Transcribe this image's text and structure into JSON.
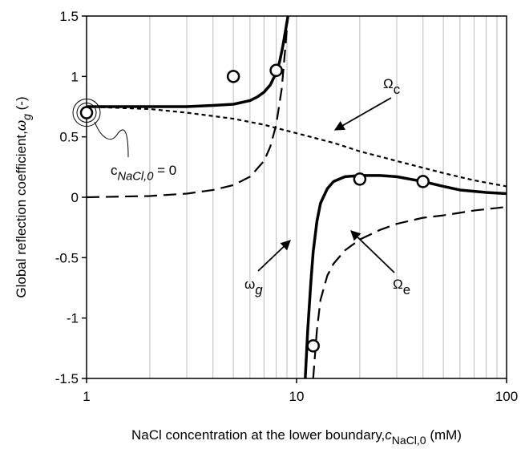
{
  "chart_data": {
    "type": "line",
    "xlabel": {
      "main": "NaCl concentration at the lower boundary,",
      "italic": "c",
      "sub": "NaCl,0",
      "tail": " (mM)"
    },
    "ylabel": {
      "main": "Global reflection coefficient,",
      "italic": "ω",
      "sub": "g",
      "tail": " (-)"
    },
    "xscale": "log",
    "xlim": [
      1,
      100
    ],
    "ylim": [
      -1.5,
      1.5
    ],
    "xticks": [
      1,
      10,
      100
    ],
    "xminor": [
      2,
      3,
      4,
      5,
      6,
      7,
      8,
      9,
      20,
      30,
      40,
      50,
      60,
      70,
      80,
      90
    ],
    "yticks": [
      -1.5,
      -1,
      -0.5,
      0,
      0.5,
      1,
      1.5
    ],
    "grid": true,
    "series": [
      {
        "style": "solid",
        "color": "#000000",
        "x": [
          1,
          2,
          3,
          4,
          5,
          6,
          6.5,
          7,
          7.5,
          8,
          8.3,
          8.6,
          8.9,
          9.1,
          10,
          11,
          11.3,
          11.7,
          12,
          12.5,
          13,
          14,
          15,
          17,
          20,
          25,
          30,
          40,
          50,
          60,
          80,
          100
        ],
        "values": [
          0.75,
          0.75,
          0.75,
          0.76,
          0.77,
          0.8,
          0.83,
          0.87,
          0.93,
          1.03,
          1.12,
          1.25,
          1.4,
          1.5,
          null,
          -1.5,
          -1.1,
          -0.7,
          -0.45,
          -0.2,
          -0.05,
          0.07,
          0.13,
          0.17,
          0.18,
          0.18,
          0.17,
          0.13,
          0.09,
          0.06,
          0.04,
          0.03
        ]
      },
      {
        "style": "short-dash",
        "color": "#000000",
        "x": [
          1,
          2,
          3,
          5,
          7,
          10,
          15,
          20,
          30,
          50,
          70,
          100
        ],
        "values": [
          0.75,
          0.73,
          0.7,
          0.65,
          0.6,
          0.53,
          0.45,
          0.38,
          0.3,
          0.2,
          0.14,
          0.09
        ]
      },
      {
        "style": "long-dash",
        "color": "#000000",
        "x": [
          1,
          2,
          3,
          4,
          5,
          6,
          7,
          7.5,
          8,
          8.5,
          8.8,
          9.1,
          10,
          12,
          12.5,
          13,
          14,
          15,
          17,
          20,
          25,
          30,
          40,
          50,
          70,
          100
        ],
        "values": [
          0.0,
          0.01,
          0.03,
          0.06,
          0.1,
          0.17,
          0.3,
          0.42,
          0.6,
          0.9,
          1.2,
          1.5,
          null,
          -1.5,
          -1.1,
          -0.85,
          -0.65,
          -0.55,
          -0.44,
          -0.35,
          -0.27,
          -0.22,
          -0.17,
          -0.15,
          -0.11,
          -0.08
        ]
      }
    ],
    "points": {
      "x": [
        1,
        5,
        8,
        12,
        20,
        40
      ],
      "values": [
        0.7,
        1.0,
        1.05,
        -1.23,
        0.15,
        0.13
      ]
    },
    "annotations": [
      {
        "main": "Ω",
        "sub": "c"
      },
      {
        "main": "ω",
        "sub": "g"
      },
      {
        "main": "Ω",
        "sub": "e"
      },
      {
        "main": "c",
        "sub": "NaCl,0",
        "tail": " = 0"
      }
    ]
  }
}
